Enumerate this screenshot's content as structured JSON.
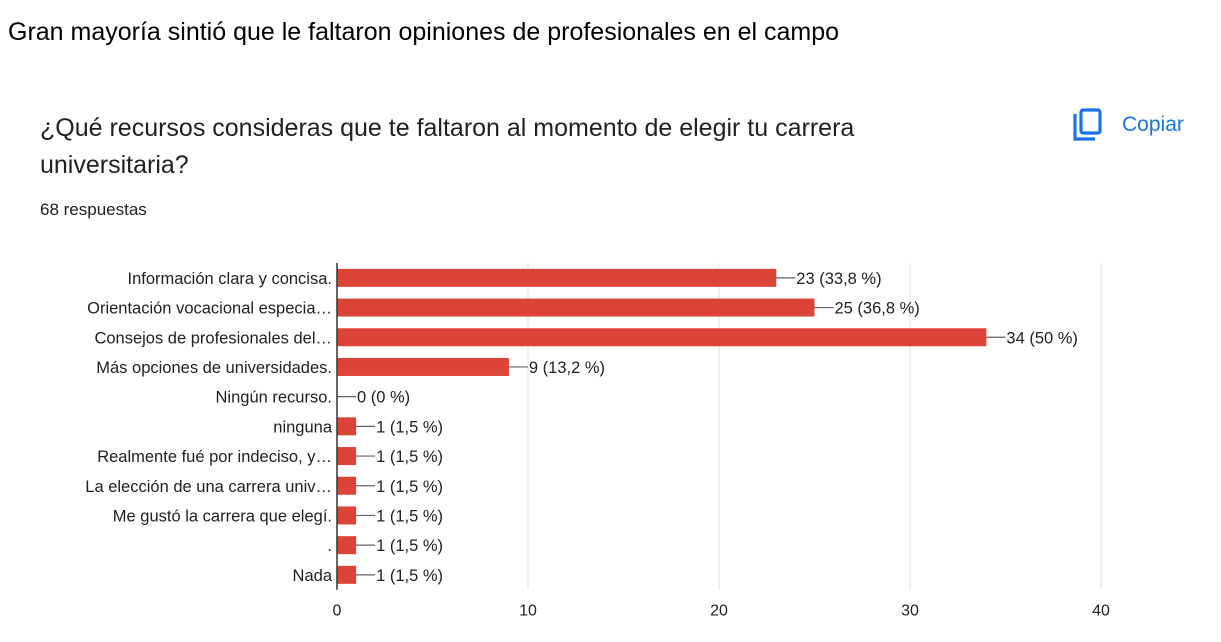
{
  "caption": "Gran mayoría sintió que le faltaron opiniones de profesionales en el campo",
  "question": "¿Qué recursos consideras que te faltaron al momento de elegir tu carrera universitaria?",
  "responses": "68 respuestas",
  "copy_label": "Copiar",
  "copy_icon": "copy-icon",
  "colors": {
    "bar": "#db4437",
    "accent": "#1a73e8",
    "grid": "#e0e0e0",
    "text": "#202124"
  },
  "chart_data": {
    "type": "bar",
    "orientation": "horizontal",
    "categories": [
      "Información clara y concisa.",
      "Orientación vocacional especia…",
      "Consejos de profesionales del…",
      "Más opciones de universidades.",
      "Ningún recurso.",
      "ninguna",
      "Realmente fué por indeciso, y…",
      "La elección de una carrera univ…",
      "Me gustó la carrera que elegí.",
      ".",
      "Nada"
    ],
    "values": [
      23,
      25,
      34,
      9,
      0,
      1,
      1,
      1,
      1,
      1,
      1
    ],
    "data_labels": [
      "23 (33,8 %)",
      "25 (36,8 %)",
      "34 (50 %)",
      "9 (13,2 %)",
      "0 (0 %)",
      "1 (1,5 %)",
      "1 (1,5 %)",
      "1 (1,5 %)",
      "1 (1,5 %)",
      "1 (1,5 %)",
      "1 (1,5 %)"
    ],
    "xlim": [
      0,
      40
    ],
    "xticks": [
      "0",
      "10",
      "20",
      "30",
      "40"
    ],
    "grid": true
  }
}
